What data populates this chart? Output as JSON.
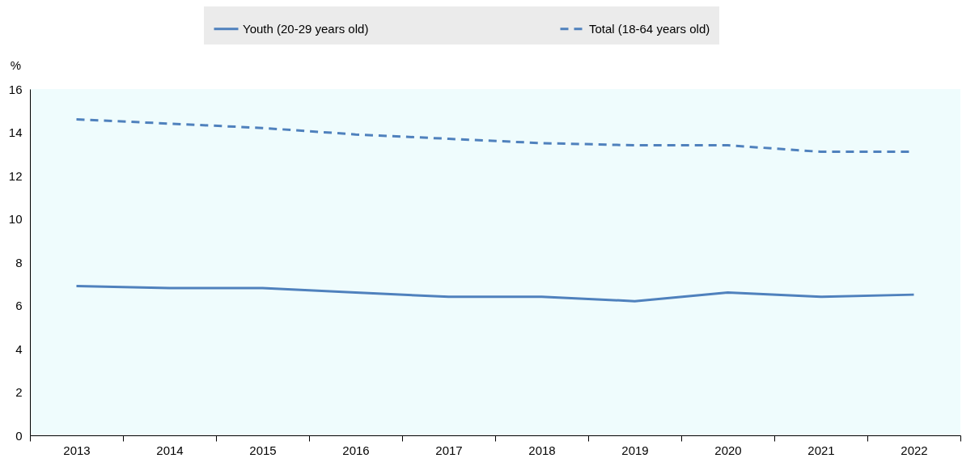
{
  "chart_data": {
    "type": "line",
    "ylabel": "%",
    "categories": [
      "2013",
      "2014",
      "2015",
      "2016",
      "2017",
      "2018",
      "2019",
      "2020",
      "2021",
      "2022"
    ],
    "series": [
      {
        "name": "Youth (20-29 years old)",
        "color": "#4f81bd",
        "line_style": "solid",
        "values": [
          6.9,
          6.8,
          6.8,
          6.6,
          6.4,
          6.4,
          6.2,
          6.6,
          6.4,
          6.5
        ]
      },
      {
        "name": "Total (18-64 years old)",
        "color": "#4f81bd",
        "line_style": "dashed",
        "values": [
          14.6,
          14.4,
          14.2,
          13.9,
          13.7,
          13.5,
          13.4,
          13.4,
          13.1,
          13.1
        ]
      }
    ],
    "ylim": [
      0,
      16
    ],
    "yticks": [
      0,
      2,
      4,
      6,
      8,
      10,
      12,
      14,
      16
    ],
    "grid": false,
    "legend": "top"
  }
}
